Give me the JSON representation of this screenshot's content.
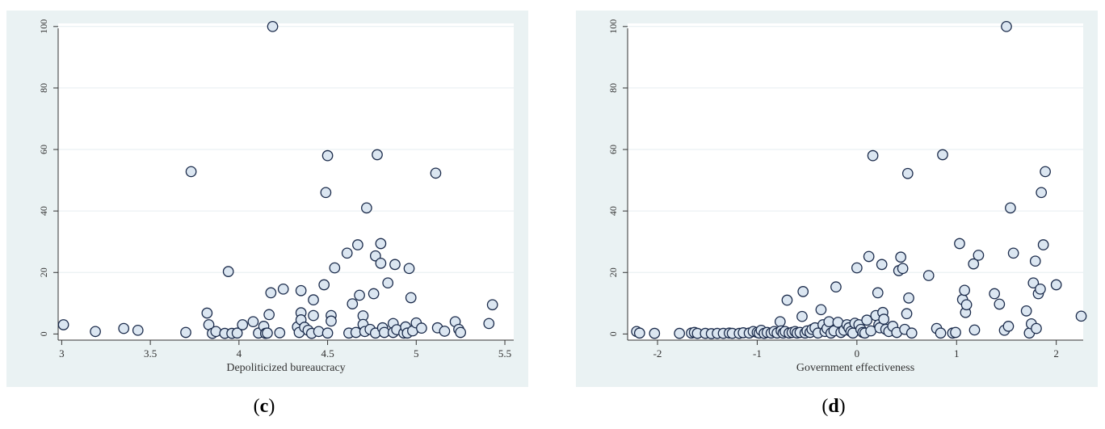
{
  "captions": {
    "c": "c",
    "d": "d"
  },
  "style": {
    "background": "#eaf2f3",
    "plot_bg": "#ffffff",
    "grid": "#e6eef0",
    "axis": "#333333",
    "marker_fill": "#dbe6f1",
    "marker_stroke": "#1a2a4a"
  },
  "chart_data": [
    {
      "id": "c",
      "type": "scatter",
      "title": "",
      "xlabel": "Depoliticized bureaucracy",
      "ylabel": "",
      "xlim": [
        2.98,
        5.55
      ],
      "ylim": [
        -2,
        101
      ],
      "xticks": [
        3,
        3.5,
        4,
        4.5,
        5,
        5.5
      ],
      "xticklabels": [
        "3",
        "3.5",
        "4",
        "4.5",
        "5",
        "5.5"
      ],
      "yticks": [
        0,
        20,
        40,
        60,
        80,
        100
      ],
      "yticklabels": [
        "0",
        "20",
        "40",
        "60",
        "80",
        "100"
      ],
      "grid": true,
      "points": [
        [
          3.01,
          3
        ],
        [
          3.19,
          0.8
        ],
        [
          3.35,
          1.8
        ],
        [
          3.43,
          1.2
        ],
        [
          3.7,
          0.5
        ],
        [
          3.73,
          52.8
        ],
        [
          3.82,
          6.8
        ],
        [
          3.83,
          3
        ],
        [
          3.85,
          0.2
        ],
        [
          3.87,
          0.8
        ],
        [
          3.92,
          0.2
        ],
        [
          3.94,
          20.3
        ],
        [
          3.96,
          0.2
        ],
        [
          3.99,
          0.3
        ],
        [
          4.02,
          3
        ],
        [
          4.08,
          4
        ],
        [
          4.11,
          0.3
        ],
        [
          4.14,
          2.5
        ],
        [
          4.15,
          0.2
        ],
        [
          4.16,
          0.3
        ],
        [
          4.17,
          6.3
        ],
        [
          4.18,
          13.4
        ],
        [
          4.19,
          100
        ],
        [
          4.23,
          0.4
        ],
        [
          4.25,
          14.6
        ],
        [
          4.33,
          2.3
        ],
        [
          4.34,
          0.5
        ],
        [
          4.35,
          14.1
        ],
        [
          4.35,
          6.9
        ],
        [
          4.35,
          4.6
        ],
        [
          4.37,
          2.2
        ],
        [
          4.39,
          1.2
        ],
        [
          4.41,
          0.2
        ],
        [
          4.42,
          11.1
        ],
        [
          4.42,
          6.0
        ],
        [
          4.45,
          0.8
        ],
        [
          4.48,
          16.0
        ],
        [
          4.49,
          46.0
        ],
        [
          4.5,
          58.0
        ],
        [
          4.5,
          0.3
        ],
        [
          4.52,
          6.0
        ],
        [
          4.52,
          4.2
        ],
        [
          4.54,
          21.5
        ],
        [
          4.61,
          26.3
        ],
        [
          4.62,
          0.3
        ],
        [
          4.64,
          9.8
        ],
        [
          4.66,
          0.5
        ],
        [
          4.67,
          29.0
        ],
        [
          4.68,
          12.6
        ],
        [
          4.7,
          5.9
        ],
        [
          4.7,
          3.1
        ],
        [
          4.71,
          0.8
        ],
        [
          4.72,
          41.0
        ],
        [
          4.74,
          1.5
        ],
        [
          4.76,
          13.1
        ],
        [
          4.77,
          25.4
        ],
        [
          4.77,
          0.3
        ],
        [
          4.78,
          58.3
        ],
        [
          4.8,
          29.4
        ],
        [
          4.8,
          23.0
        ],
        [
          4.81,
          2.0
        ],
        [
          4.82,
          0.5
        ],
        [
          4.84,
          16.6
        ],
        [
          4.87,
          3.4
        ],
        [
          4.87,
          0.5
        ],
        [
          4.88,
          22.6
        ],
        [
          4.89,
          1.4
        ],
        [
          4.93,
          0.3
        ],
        [
          4.94,
          2.3
        ],
        [
          4.95,
          0.3
        ],
        [
          4.96,
          21.3
        ],
        [
          4.97,
          11.8
        ],
        [
          4.98,
          1.0
        ],
        [
          5.0,
          3.6
        ],
        [
          5.03,
          1.9
        ],
        [
          5.11,
          52.3
        ],
        [
          5.12,
          2.0
        ],
        [
          5.16,
          0.9
        ],
        [
          5.22,
          4.0
        ],
        [
          5.24,
          1.5
        ],
        [
          5.25,
          0.5
        ],
        [
          5.41,
          3.4
        ],
        [
          5.43,
          9.5
        ]
      ]
    },
    {
      "id": "d",
      "type": "scatter",
      "title": "",
      "xlabel": "Government effectiveness",
      "ylabel": "",
      "xlim": [
        -2.3,
        2.27
      ],
      "ylim": [
        -2,
        101
      ],
      "xticks": [
        -2,
        -1,
        0,
        1,
        2
      ],
      "xticklabels": [
        "-2",
        "-1",
        "0",
        "1",
        "2"
      ],
      "yticks": [
        0,
        20,
        40,
        60,
        80,
        100
      ],
      "yticklabels": [
        "0",
        "20",
        "40",
        "60",
        "80",
        "100"
      ],
      "grid": true,
      "points": [
        [
          -2.21,
          0.8
        ],
        [
          -2.18,
          0.3
        ],
        [
          -2.03,
          0.2
        ],
        [
          -1.78,
          0.2
        ],
        [
          -1.66,
          0.3
        ],
        [
          -1.63,
          0.5
        ],
        [
          -1.6,
          0.2
        ],
        [
          -1.52,
          0.2
        ],
        [
          -1.46,
          0.1
        ],
        [
          -1.4,
          0.2
        ],
        [
          -1.34,
          0.2
        ],
        [
          -1.28,
          0.3
        ],
        [
          -1.25,
          0.2
        ],
        [
          -1.18,
          0.2
        ],
        [
          -1.14,
          0.4
        ],
        [
          -1.08,
          0.3
        ],
        [
          -1.04,
          0.8
        ],
        [
          -1.0,
          0.5
        ],
        [
          -0.98,
          0.3
        ],
        [
          -0.96,
          1.2
        ],
        [
          -0.93,
          0.2
        ],
        [
          -0.9,
          0.5
        ],
        [
          -0.86,
          0.3
        ],
        [
          -0.83,
          0.8
        ],
        [
          -0.8,
          0.3
        ],
        [
          -0.77,
          4.0
        ],
        [
          -0.76,
          1.0
        ],
        [
          -0.74,
          0.3
        ],
        [
          -0.72,
          0.8
        ],
        [
          -0.7,
          11.0
        ],
        [
          -0.68,
          0.3
        ],
        [
          -0.65,
          0.5
        ],
        [
          -0.62,
          0.8
        ],
        [
          -0.6,
          0.3
        ],
        [
          -0.57,
          0.5
        ],
        [
          -0.55,
          5.7
        ],
        [
          -0.54,
          13.8
        ],
        [
          -0.52,
          0.3
        ],
        [
          -0.5,
          1.0
        ],
        [
          -0.47,
          0.5
        ],
        [
          -0.45,
          1.5
        ],
        [
          -0.42,
          2.0
        ],
        [
          -0.39,
          0.3
        ],
        [
          -0.36,
          7.9
        ],
        [
          -0.34,
          3.0
        ],
        [
          -0.32,
          0.8
        ],
        [
          -0.3,
          1.8
        ],
        [
          -0.28,
          4.0
        ],
        [
          -0.26,
          0.3
        ],
        [
          -0.23,
          1.0
        ],
        [
          -0.21,
          15.3
        ],
        [
          -0.19,
          3.8
        ],
        [
          -0.16,
          0.5
        ],
        [
          -0.13,
          1.2
        ],
        [
          -0.1,
          3.0
        ],
        [
          -0.08,
          2.0
        ],
        [
          -0.06,
          0.8
        ],
        [
          -0.04,
          0.3
        ],
        [
          -0.02,
          3.5
        ],
        [
          0.0,
          21.5
        ],
        [
          0.02,
          3.0
        ],
        [
          0.04,
          1.5
        ],
        [
          0.06,
          0.5
        ],
        [
          0.08,
          0.3
        ],
        [
          0.1,
          4.5
        ],
        [
          0.12,
          25.2
        ],
        [
          0.14,
          1.0
        ],
        [
          0.16,
          58.0
        ],
        [
          0.19,
          6.0
        ],
        [
          0.21,
          13.4
        ],
        [
          0.22,
          3.0
        ],
        [
          0.23,
          2.0
        ],
        [
          0.25,
          22.6
        ],
        [
          0.26,
          7.0
        ],
        [
          0.27,
          4.8
        ],
        [
          0.29,
          1.5
        ],
        [
          0.32,
          0.8
        ],
        [
          0.36,
          2.5
        ],
        [
          0.4,
          0.5
        ],
        [
          0.42,
          20.6
        ],
        [
          0.44,
          25.0
        ],
        [
          0.46,
          21.3
        ],
        [
          0.48,
          1.5
        ],
        [
          0.5,
          6.6
        ],
        [
          0.51,
          52.2
        ],
        [
          0.52,
          11.7
        ],
        [
          0.55,
          0.3
        ],
        [
          0.72,
          19.0
        ],
        [
          0.8,
          1.8
        ],
        [
          0.84,
          0.3
        ],
        [
          0.86,
          58.3
        ],
        [
          0.96,
          0.3
        ],
        [
          0.99,
          0.5
        ],
        [
          1.03,
          29.4
        ],
        [
          1.06,
          11.2
        ],
        [
          1.08,
          14.2
        ],
        [
          1.09,
          7.0
        ],
        [
          1.1,
          9.5
        ],
        [
          1.17,
          22.8
        ],
        [
          1.18,
          1.3
        ],
        [
          1.22,
          25.6
        ],
        [
          1.38,
          13.1
        ],
        [
          1.43,
          9.7
        ],
        [
          1.48,
          1.2
        ],
        [
          1.5,
          100
        ],
        [
          1.52,
          2.5
        ],
        [
          1.54,
          41.0
        ],
        [
          1.57,
          26.3
        ],
        [
          1.7,
          7.5
        ],
        [
          1.73,
          0.3
        ],
        [
          1.75,
          3.3
        ],
        [
          1.77,
          16.6
        ],
        [
          1.79,
          23.7
        ],
        [
          1.8,
          1.8
        ],
        [
          1.82,
          13.1
        ],
        [
          1.84,
          14.6
        ],
        [
          1.85,
          46.0
        ],
        [
          1.87,
          29.0
        ],
        [
          1.89,
          52.8
        ],
        [
          2.0,
          16.0
        ],
        [
          2.25,
          5.8
        ]
      ]
    }
  ]
}
